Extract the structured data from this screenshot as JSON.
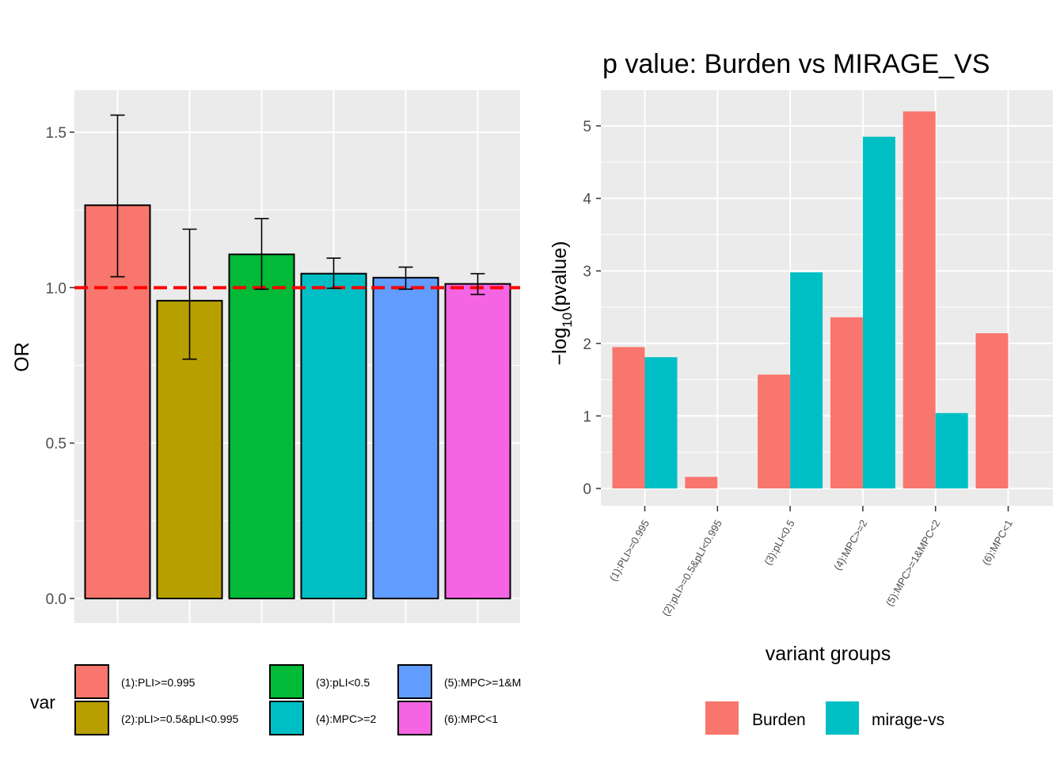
{
  "chart_data": [
    {
      "type": "bar",
      "title": "",
      "xlabel": "",
      "ylabel": "OR",
      "ylim": [
        -0.02,
        1.62
      ],
      "yticks": [
        "0.0",
        "0.5",
        "1.0",
        "1.5"
      ],
      "ytick_values": [
        0,
        0.5,
        1.0,
        1.5
      ],
      "reference_line": 1.0,
      "reference_line_color": "#ff0000",
      "grid": true,
      "legend_title": "var",
      "legend_position": "bottom",
      "categories": [
        "(1):PLI>=0.995",
        "(2):pLI>=0.5&pLI<0.995",
        "(3):pLI<0.5",
        "(4):MPC>=2",
        "(5):MPC>=1&M",
        "(6):MPC<1"
      ],
      "colors": [
        "#f8766d",
        "#b79f00",
        "#00ba38",
        "#00bfc4",
        "#619cff",
        "#f564e3"
      ],
      "values": [
        1.265,
        0.958,
        1.107,
        1.045,
        1.032,
        1.012
      ],
      "error_low": [
        1.035,
        0.77,
        0.995,
        0.998,
        0.995,
        0.978
      ],
      "error_high": [
        1.555,
        1.188,
        1.222,
        1.095,
        1.066,
        1.045
      ]
    },
    {
      "type": "bar",
      "title": "p value: Burden vs MIRAGE_VS",
      "xlabel": "variant groups",
      "ylabel_prefix": "−log",
      "ylabel_sub": "10",
      "ylabel_suffix": "(pvalue)",
      "ylim": [
        -0.25,
        5.45
      ],
      "yticks": [
        "0",
        "1",
        "2",
        "3",
        "4",
        "5"
      ],
      "ytick_values": [
        0,
        1,
        2,
        3,
        4,
        5
      ],
      "grid": true,
      "legend_position": "bottom",
      "categories": [
        "(1):PLI>=0.995",
        "(2):pLI>=0.5&pLI<0.995",
        "(3):pLI<0.5",
        "(4):MPC>=2",
        "(5):MPC>=1&MPC<2",
        "(6):MPC<1"
      ],
      "series": [
        {
          "name": "Burden",
          "color": "#f8766d",
          "values": [
            1.95,
            0.16,
            1.57,
            2.36,
            5.2,
            2.14
          ]
        },
        {
          "name": "mirage-vs",
          "color": "#00bfc4",
          "values": [
            1.81,
            0,
            2.98,
            4.85,
            1.04,
            0
          ]
        }
      ]
    }
  ]
}
